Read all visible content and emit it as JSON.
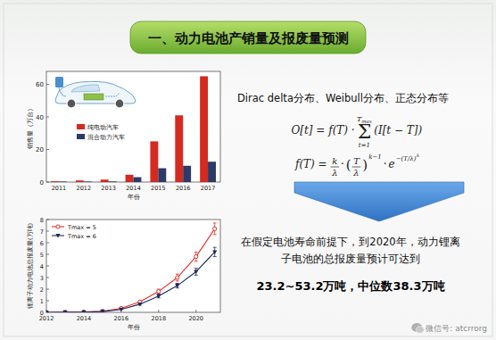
{
  "header": {
    "title": "一、动力电池产销量及报废量预测"
  },
  "chart_data": [
    {
      "type": "bar",
      "x_label": "年份",
      "y_label": "销售量（万台）",
      "categories": [
        "2011",
        "2012",
        "2013",
        "2014",
        "2015",
        "2016",
        "2017"
      ],
      "series": [
        {
          "name": "纯电动汽车",
          "color": "#d42a20",
          "values": [
            0.5,
            1,
            1.5,
            4.5,
            25,
            41,
            65
          ]
        },
        {
          "name": "混合动力汽车",
          "color": "#2b3a67",
          "values": [
            0.3,
            0.3,
            0.4,
            3,
            8.5,
            10,
            12.5
          ]
        }
      ],
      "ylim": [
        0,
        68
      ],
      "yticks": [
        0,
        20,
        40,
        60
      ],
      "legend": "left",
      "grid": false
    },
    {
      "type": "line",
      "x_label": "年份",
      "y_label": "锂离子动力电池总报废量(万吨)",
      "x": [
        2012,
        2013,
        2014,
        2015,
        2016,
        2017,
        2018,
        2019,
        2020,
        2021
      ],
      "series": [
        {
          "name": "Tmax = 5",
          "color": "#e0302a",
          "marker": "circle",
          "values": [
            0,
            0.01,
            0.03,
            0.1,
            0.35,
            0.9,
            1.8,
            3.0,
            4.8,
            7.2
          ],
          "errors": [
            null,
            null,
            null,
            null,
            null,
            0.1,
            0.2,
            0.3,
            0.4,
            0.5
          ]
        },
        {
          "name": "Tmax = 6",
          "color": "#1f2a5a",
          "marker": "triangle",
          "values": [
            0,
            0.01,
            0.02,
            0.07,
            0.25,
            0.7,
            1.4,
            2.3,
            3.5,
            5.2
          ],
          "errors": [
            null,
            null,
            null,
            null,
            null,
            0.08,
            0.15,
            0.2,
            0.3,
            0.4
          ]
        }
      ],
      "xlim": [
        2012,
        2021.3
      ],
      "xticks": [
        2012,
        2014,
        2016,
        2018,
        2020
      ],
      "ylim": [
        0,
        8
      ],
      "yticks": [
        0,
        1,
        2,
        3,
        4,
        5,
        6,
        7,
        8
      ],
      "legend": "upper left",
      "grid": false
    }
  ],
  "text": {
    "distributions": "Dirac delta分布、Weibull分布、正态分布等",
    "formula_1": {
      "lhs": "O[t] = f(T) ·",
      "sum": "Σ",
      "upper": "T",
      "upper_sub": "max",
      "lower": "t=1",
      "body": "(I[t − T])"
    },
    "formula_2": {
      "lhs": "f(T) =",
      "frac1_num": "k",
      "frac1_den": "λ",
      "dot_1": "·",
      "paren_open": "(",
      "frac2_num": "T",
      "frac2_den": "λ",
      "paren_close": ")",
      "exp_1": "k−1",
      "dot_2": "·",
      "base": "e",
      "exp_2": "−(T/λ)",
      "exp_2_sup": "k"
    },
    "conclusion": "在假定电池寿命前提下，到2020年，动力锂离子电池的总报废量预计可达到",
    "highlight": "23.2~53.2万吨，中位数38.3万吨",
    "watermark": "微信号: atcrrorg"
  }
}
